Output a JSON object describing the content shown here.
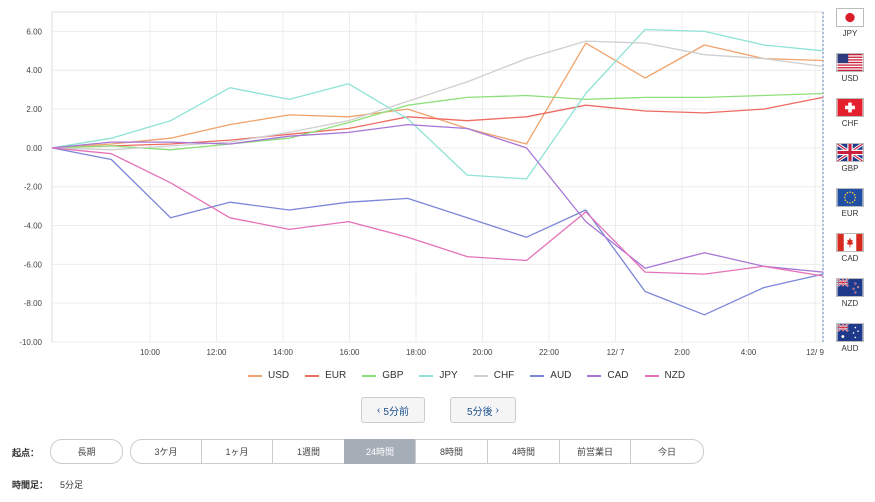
{
  "chart_data": {
    "type": "line",
    "y_ticks": [
      "6.00",
      "4.00",
      "2.00",
      "0.00",
      "-2.00",
      "-4.00",
      "-6.00",
      "-8.00",
      "-10.00"
    ],
    "ylim": [
      -10,
      7
    ],
    "x_ticks": [
      "10:00",
      "12:00",
      "14:00",
      "16:00",
      "18:00",
      "20:00",
      "22:00",
      "12/ 7",
      "2:00",
      "4:00",
      "12/ 9"
    ],
    "grid": true,
    "legend_position": "bottom",
    "series": [
      {
        "name": "USD",
        "color": "#f0a36c",
        "values": [
          0,
          0.2,
          0.5,
          1.2,
          1.7,
          1.6,
          2.0,
          1.0,
          0.2,
          5.4,
          3.6,
          5.3,
          4.6,
          4.5
        ]
      },
      {
        "name": "EUR",
        "color": "#ee6b62",
        "values": [
          0,
          0.1,
          0.2,
          0.4,
          0.7,
          1.0,
          1.6,
          1.4,
          1.6,
          2.2,
          1.9,
          1.8,
          2.0,
          2.6
        ]
      },
      {
        "name": "GBP",
        "color": "#8ee07a",
        "values": [
          0,
          0.1,
          -0.1,
          0.2,
          0.5,
          1.3,
          2.2,
          2.6,
          2.7,
          2.5,
          2.6,
          2.6,
          2.7,
          2.8
        ]
      },
      {
        "name": "JPY",
        "color": "#8fe3d6",
        "values": [
          0,
          0.5,
          1.4,
          3.1,
          2.5,
          3.3,
          1.5,
          -1.4,
          -1.6,
          2.8,
          6.1,
          6.0,
          5.3,
          5.0
        ]
      },
      {
        "name": "CHF",
        "color": "#cfcfcf",
        "values": [
          0,
          -0.1,
          0.1,
          0.3,
          0.8,
          1.4,
          2.4,
          3.4,
          4.6,
          5.5,
          5.4,
          4.8,
          4.6,
          4.2
        ]
      },
      {
        "name": "AUD",
        "color": "#7b86d8",
        "values": [
          0,
          -0.6,
          -3.6,
          -2.8,
          -3.2,
          -2.8,
          -2.6,
          -3.6,
          -4.6,
          -3.2,
          -7.4,
          -8.6,
          -7.2,
          -6.5
        ]
      },
      {
        "name": "CAD",
        "color": "#a775d6",
        "values": [
          0,
          0.3,
          0.3,
          0.2,
          0.6,
          0.8,
          1.2,
          1.0,
          0.0,
          -3.8,
          -6.2,
          -5.4,
          -6.1,
          -6.4
        ]
      },
      {
        "name": "NZD",
        "color": "#e472b8",
        "values": [
          0,
          -0.3,
          -1.8,
          -3.6,
          -4.2,
          -3.8,
          -4.6,
          -5.6,
          -5.8,
          -3.3,
          -6.4,
          -6.5,
          -6.1,
          -6.6
        ]
      }
    ]
  },
  "flags": [
    {
      "label": "JPY",
      "icon": "japan-flag-icon"
    },
    {
      "label": "USD",
      "icon": "usa-flag-icon"
    },
    {
      "label": "CHF",
      "icon": "switzerland-flag-icon"
    },
    {
      "label": "GBP",
      "icon": "uk-flag-icon"
    },
    {
      "label": "EUR",
      "icon": "eu-flag-icon"
    },
    {
      "label": "CAD",
      "icon": "canada-flag-icon"
    },
    {
      "label": "NZD",
      "icon": "new-zealand-flag-icon"
    },
    {
      "label": "AUD",
      "icon": "australia-flag-icon"
    }
  ],
  "nav": {
    "prev_label": "5分前",
    "next_label": "5分後",
    "prev_icon": "chevron-left-icon",
    "next_icon": "chevron-right-icon"
  },
  "start_point": {
    "label": "起点：",
    "long_label": "長期",
    "options": [
      "3ケ月",
      "1ヶ月",
      "1週間",
      "24時間",
      "8時間",
      "4時間",
      "前営業日",
      "今日"
    ],
    "selected": "24時間"
  },
  "timeframe": {
    "label": "時間足：",
    "value": "5分足"
  }
}
